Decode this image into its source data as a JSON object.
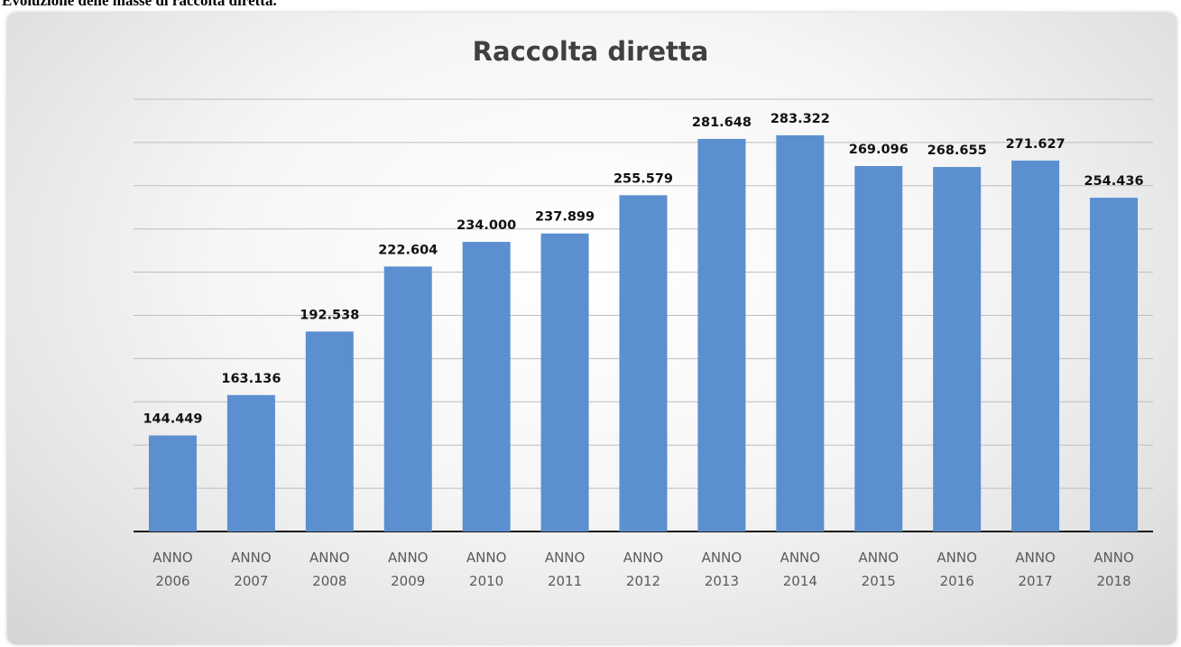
{
  "caption": "Evoluzione delle masse di raccolta diretta.",
  "chart_data": {
    "type": "bar",
    "title": "Raccolta diretta",
    "xlabel": "",
    "ylabel": "",
    "categories": [
      [
        "ANNO",
        "2006"
      ],
      [
        "ANNO",
        "2007"
      ],
      [
        "ANNO",
        "2008"
      ],
      [
        "ANNO",
        "2009"
      ],
      [
        "ANNO",
        "2010"
      ],
      [
        "ANNO",
        "2011"
      ],
      [
        "ANNO",
        "2012"
      ],
      [
        "ANNO",
        "2013"
      ],
      [
        "ANNO",
        "2014"
      ],
      [
        "ANNO",
        "2015"
      ],
      [
        "ANNO",
        "2016"
      ],
      [
        "ANNO",
        "2017"
      ],
      [
        "ANNO",
        "2018"
      ]
    ],
    "values": [
      144449,
      163136,
      192538,
      222604,
      234000,
      237899,
      255579,
      281648,
      283322,
      269096,
      268655,
      271627,
      254436
    ],
    "data_labels": [
      "144.449",
      "163.136",
      "192.538",
      "222.604",
      "234.000",
      "237.899",
      "255.579",
      "281.648",
      "283.322",
      "269.096",
      "268.655",
      "271.627",
      "254.436"
    ],
    "ylim": [
      100000,
      300000
    ],
    "grid": true,
    "bar_color": "#5b8fd0"
  }
}
